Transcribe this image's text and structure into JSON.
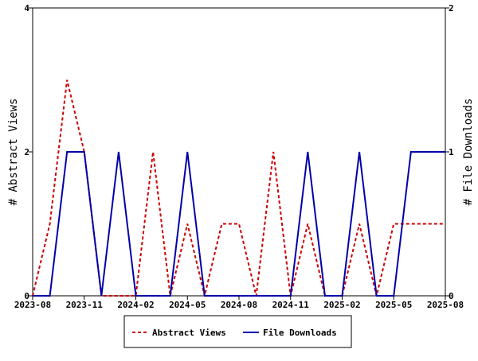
{
  "chart_data": {
    "type": "line",
    "x": [
      "2023-08",
      "2023-09",
      "2023-10",
      "2023-11",
      "2023-12",
      "2024-01",
      "2024-02",
      "2024-03",
      "2024-04",
      "2024-05",
      "2024-06",
      "2024-07",
      "2024-08",
      "2024-09",
      "2024-10",
      "2024-11",
      "2024-12",
      "2025-01",
      "2025-02",
      "2025-03",
      "2025-04",
      "2025-05",
      "2025-06",
      "2025-07",
      "2025-08"
    ],
    "xtick_labels": [
      "2023-08",
      "2023-11",
      "2024-02",
      "2024-05",
      "2024-08",
      "2024-11",
      "2025-02",
      "2025-05",
      "2025-08"
    ],
    "ylabel_left": "# Abstract Views",
    "ylabel_right": "# File Downloads",
    "ylim_left": [
      0,
      4
    ],
    "ylim_right": [
      0,
      2
    ],
    "yticks_left": [
      "0",
      "2",
      "4"
    ],
    "yticks_right": [
      "0",
      "1",
      "2"
    ],
    "grid": false,
    "legend_position": "bottom-center",
    "series": [
      {
        "name": "Abstract Views",
        "axis": "left",
        "color": "#cc0000",
        "style": "dashed",
        "values": [
          0,
          1,
          3,
          2,
          0,
          0,
          0,
          2,
          0,
          1,
          0,
          1,
          1,
          0,
          2,
          0,
          1,
          0,
          0,
          1,
          0,
          1,
          1,
          1,
          1
        ]
      },
      {
        "name": "File Downloads",
        "axis": "right",
        "color": "#0000aa",
        "style": "solid",
        "values": [
          0,
          0,
          1,
          1,
          0,
          1,
          0,
          0,
          0,
          1,
          0,
          0,
          0,
          0,
          0,
          0,
          1,
          0,
          0,
          1,
          0,
          0,
          1,
          1,
          1
        ]
      }
    ]
  }
}
